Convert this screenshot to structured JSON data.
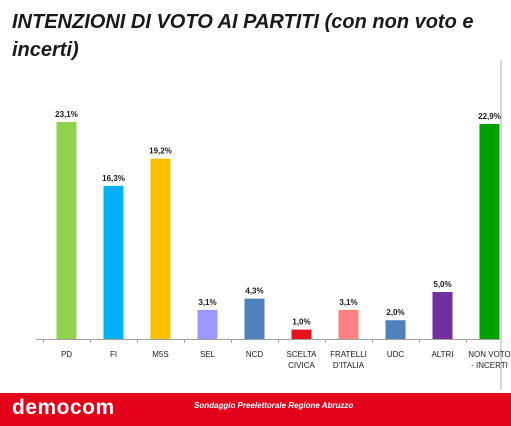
{
  "title": "INTENZIONI DI VOTO AI PARTITI (con non voto e incerti)",
  "footer": {
    "brand": "democom",
    "source": "Sondaggio Preelettorale Regione Abruzzo"
  },
  "chart_data": {
    "type": "bar",
    "title": "INTENZIONI DI VOTO AI PARTITI (con non voto e incerti)",
    "categories": [
      [
        "PD"
      ],
      [
        "FI"
      ],
      [
        "M5S"
      ],
      [
        "SEL"
      ],
      [
        "NCD"
      ],
      [
        "SCELTA",
        "CIVICA"
      ],
      [
        "FRATELLI",
        "D'ITALIA"
      ],
      [
        "UDC"
      ],
      [
        "ALTRI"
      ],
      [
        "NON VOTO",
        "- INCERTI"
      ]
    ],
    "values": [
      23.1,
      16.3,
      19.2,
      3.1,
      4.3,
      1.0,
      3.1,
      2.0,
      5.0,
      22.9
    ],
    "value_labels": [
      "23,1%",
      "16,3%",
      "19,2%",
      "3,1%",
      "4,3%",
      "1,0%",
      "3,1%",
      "2,0%",
      "5,0%",
      "22,9%"
    ],
    "colors": [
      "#92d050",
      "#00b0f0",
      "#ffc000",
      "#9999ff",
      "#4f81bd",
      "#e8121c",
      "#ff8080",
      "#4f81bd",
      "#7030a0",
      "#00a000"
    ],
    "ylim": [
      0,
      25
    ],
    "grid": false,
    "legend": "none"
  }
}
